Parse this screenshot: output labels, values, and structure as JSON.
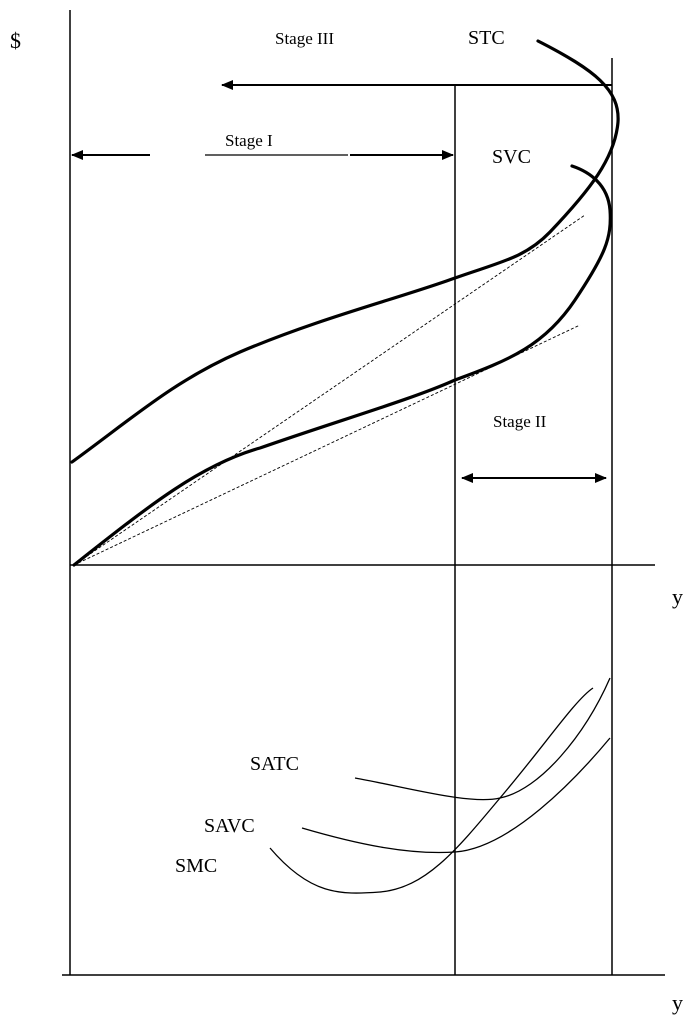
{
  "axes": {
    "dollar_label": "$",
    "y_label_upper": "y",
    "y_label_lower": "y"
  },
  "stages": {
    "stage_1": "Stage I",
    "stage_2": "Stage II",
    "stage_3": "Stage III"
  },
  "curves": {
    "stc": "STC",
    "svc": "SVC",
    "satc": "SATC",
    "savc": "SAVC",
    "smc": "SMC"
  }
}
